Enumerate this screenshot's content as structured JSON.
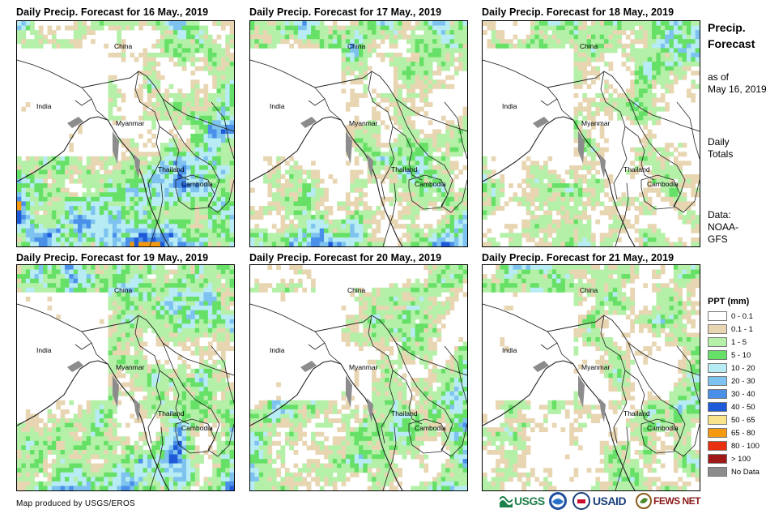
{
  "panels": [
    {
      "title": "Daily Precip. Forecast for 16 May., 2019",
      "seed": 16,
      "labels": {
        "china": "China",
        "india": "India",
        "myanmar": "Myanmar",
        "thailand": "Thailand",
        "cambodia": "Cambodia"
      }
    },
    {
      "title": "Daily Precip. Forecast for 17 May., 2019",
      "seed": 17,
      "labels": {
        "china": "China",
        "india": "India",
        "myanmar": "Myanmar",
        "thailand": "Thailand",
        "cambodia": "Cambodia"
      }
    },
    {
      "title": "Daily Precip. Forecast for 18 May., 2019",
      "seed": 18,
      "labels": {
        "china": "China",
        "india": "India",
        "myanmar": "Myanmar",
        "thailand": "Thailand",
        "cambodia": "Cambodia"
      }
    },
    {
      "title": "Daily Precip. Forecast for 19 May., 2019",
      "seed": 19,
      "labels": {
        "china": "China",
        "india": "India",
        "myanmar": "Myanmar",
        "thailand": "Thailand",
        "cambodia": "Cambodia"
      }
    },
    {
      "title": "Daily Precip. Forecast for 20 May., 2019",
      "seed": 20,
      "labels": {
        "china": "China",
        "india": "India",
        "myanmar": "Myanmar",
        "thailand": "Thailand",
        "cambodia": "Cambodia"
      }
    },
    {
      "title": "Daily Precip. Forecast for 21 May., 2019",
      "seed": 21,
      "labels": {
        "china": "China",
        "india": "India",
        "myanmar": "Myanmar",
        "thailand": "Thailand",
        "cambodia": "Cambodia"
      }
    }
  ],
  "sidebar": {
    "heading_line1": "Precip.",
    "heading_line2": "Forecast",
    "asof_line1": "as of",
    "asof_line2": "May 16, 2019",
    "totals_line1": "Daily",
    "totals_line2": "Totals",
    "data_line1": "Data:",
    "data_line2": "NOAA-",
    "data_line3": "GFS"
  },
  "legend": {
    "title": "PPT (mm)",
    "items": [
      {
        "label": "0 - 0.1",
        "color": "#ffffff"
      },
      {
        "label": "0.1 - 1",
        "color": "#e8d6b3"
      },
      {
        "label": "1 - 5",
        "color": "#b4f0a8"
      },
      {
        "label": "5 - 10",
        "color": "#66e066"
      },
      {
        "label": "10 - 20",
        "color": "#b8ecf5"
      },
      {
        "label": "20 - 30",
        "color": "#7ec3f0"
      },
      {
        "label": "30 - 40",
        "color": "#4a90e8"
      },
      {
        "label": "40 - 50",
        "color": "#1e5ad8"
      },
      {
        "label": "50 - 65",
        "color": "#f8e48a"
      },
      {
        "label": "65 - 80",
        "color": "#f59a10"
      },
      {
        "label": "80 - 100",
        "color": "#e83010"
      },
      {
        "label": "> 100",
        "color": "#a01818"
      },
      {
        "label": "No Data",
        "color": "#8c8c8c"
      }
    ]
  },
  "footer": {
    "credit": "Map produced by USGS/EROS",
    "usgs": "USGS",
    "usaid": "USAID",
    "fewsnet": "FEWS NET"
  }
}
